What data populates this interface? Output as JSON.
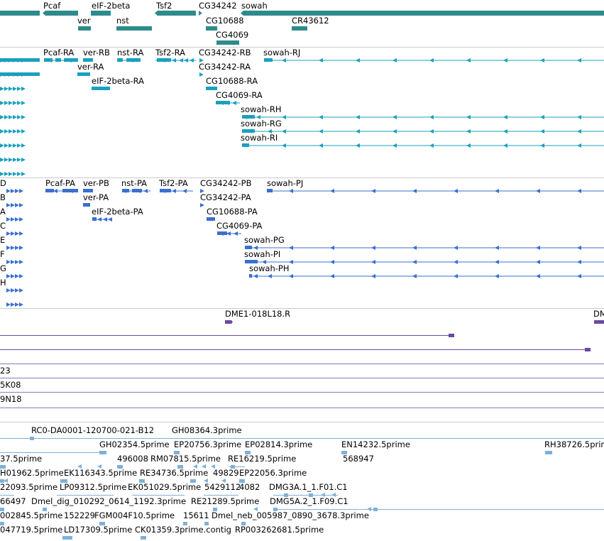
{
  "app": {
    "name": "genome-browser-track-view"
  },
  "colors": {
    "gene": "#2e8b8b",
    "transcript": "#1aa0bf",
    "protein": "#3a6fd0",
    "clone": "#6a4a9e",
    "est": "#7fb0d8",
    "separator": "#c8ccd0",
    "text": "#000000"
  },
  "tracks": {
    "genes": {
      "labels": [
        "Pcaf",
        "eIF-2beta",
        "Tsf2",
        "CG34242",
        "sowah",
        "ver",
        "nst",
        "CG10688",
        "CR43612",
        "CG4069"
      ]
    },
    "transcripts": {
      "labels": [
        "Pcaf-RA",
        "ver-RB",
        "nst-RA",
        "Tsf2-RA",
        "CG34242-RB",
        "sowah-RJ",
        "ver-RA",
        "CG34242-RA",
        "eIF-2beta-RA",
        "CG10688-RA",
        "CG4069-RA",
        "sowah-RH",
        "sowah-RG",
        "sowah-RI"
      ]
    },
    "proteins": {
      "labels": [
        "Pcaf-PA",
        "ver-PB",
        "nst-PA",
        "Tsf2-PA",
        "CG34242-PB",
        "sowah-PJ",
        "ver-PA",
        "CG34242-PA",
        "eIF-2beta-PA",
        "CG10688-PA",
        "CG4069-PA",
        "sowah-PG",
        "sowah-PI",
        "sowah-PH"
      ],
      "edge_labels": [
        "D",
        "B",
        "A",
        "C",
        "E",
        "F",
        "G",
        "H"
      ]
    },
    "clones": {
      "labels": [
        "DME1-018L18.R",
        "DM"
      ],
      "edge_labels": [
        "23",
        "5K08",
        "9N18"
      ]
    },
    "ests": {
      "labels": [
        "RC0-DA0001-120700-021-B12",
        "GH08364.3prime",
        "GH02354.5prime",
        "EP20756.3prime",
        "EP02814.3prime",
        "EN14232.5prime",
        "RH38726.5prime",
        "37.5prime",
        "496008",
        "RM07815.5prime",
        "RE16219.5prime",
        "568947",
        "H01962.5prime",
        "EK116343.5prime",
        "RE34736.5prime",
        "49829",
        "EP22056.3prime",
        "22093.5prime",
        "LP09312.5prime",
        "EK051029.5prime",
        "5429112",
        "4082",
        "DMG3A.1_1.F01.C1",
        "66497",
        "Dmel_dig_010292_0614_1192.3prime",
        "RE21289.5prime",
        "DMG5A.2_1.F09.C1",
        "002845.5prime",
        "152229",
        "FGM004F10.5prime",
        "15611",
        "Dmel_neb_005987_0890_3678.3prime",
        "047719.5prime",
        "LD17309.5prime",
        "CK01359.3prime.contig",
        "RP003262681.5prime"
      ]
    }
  }
}
